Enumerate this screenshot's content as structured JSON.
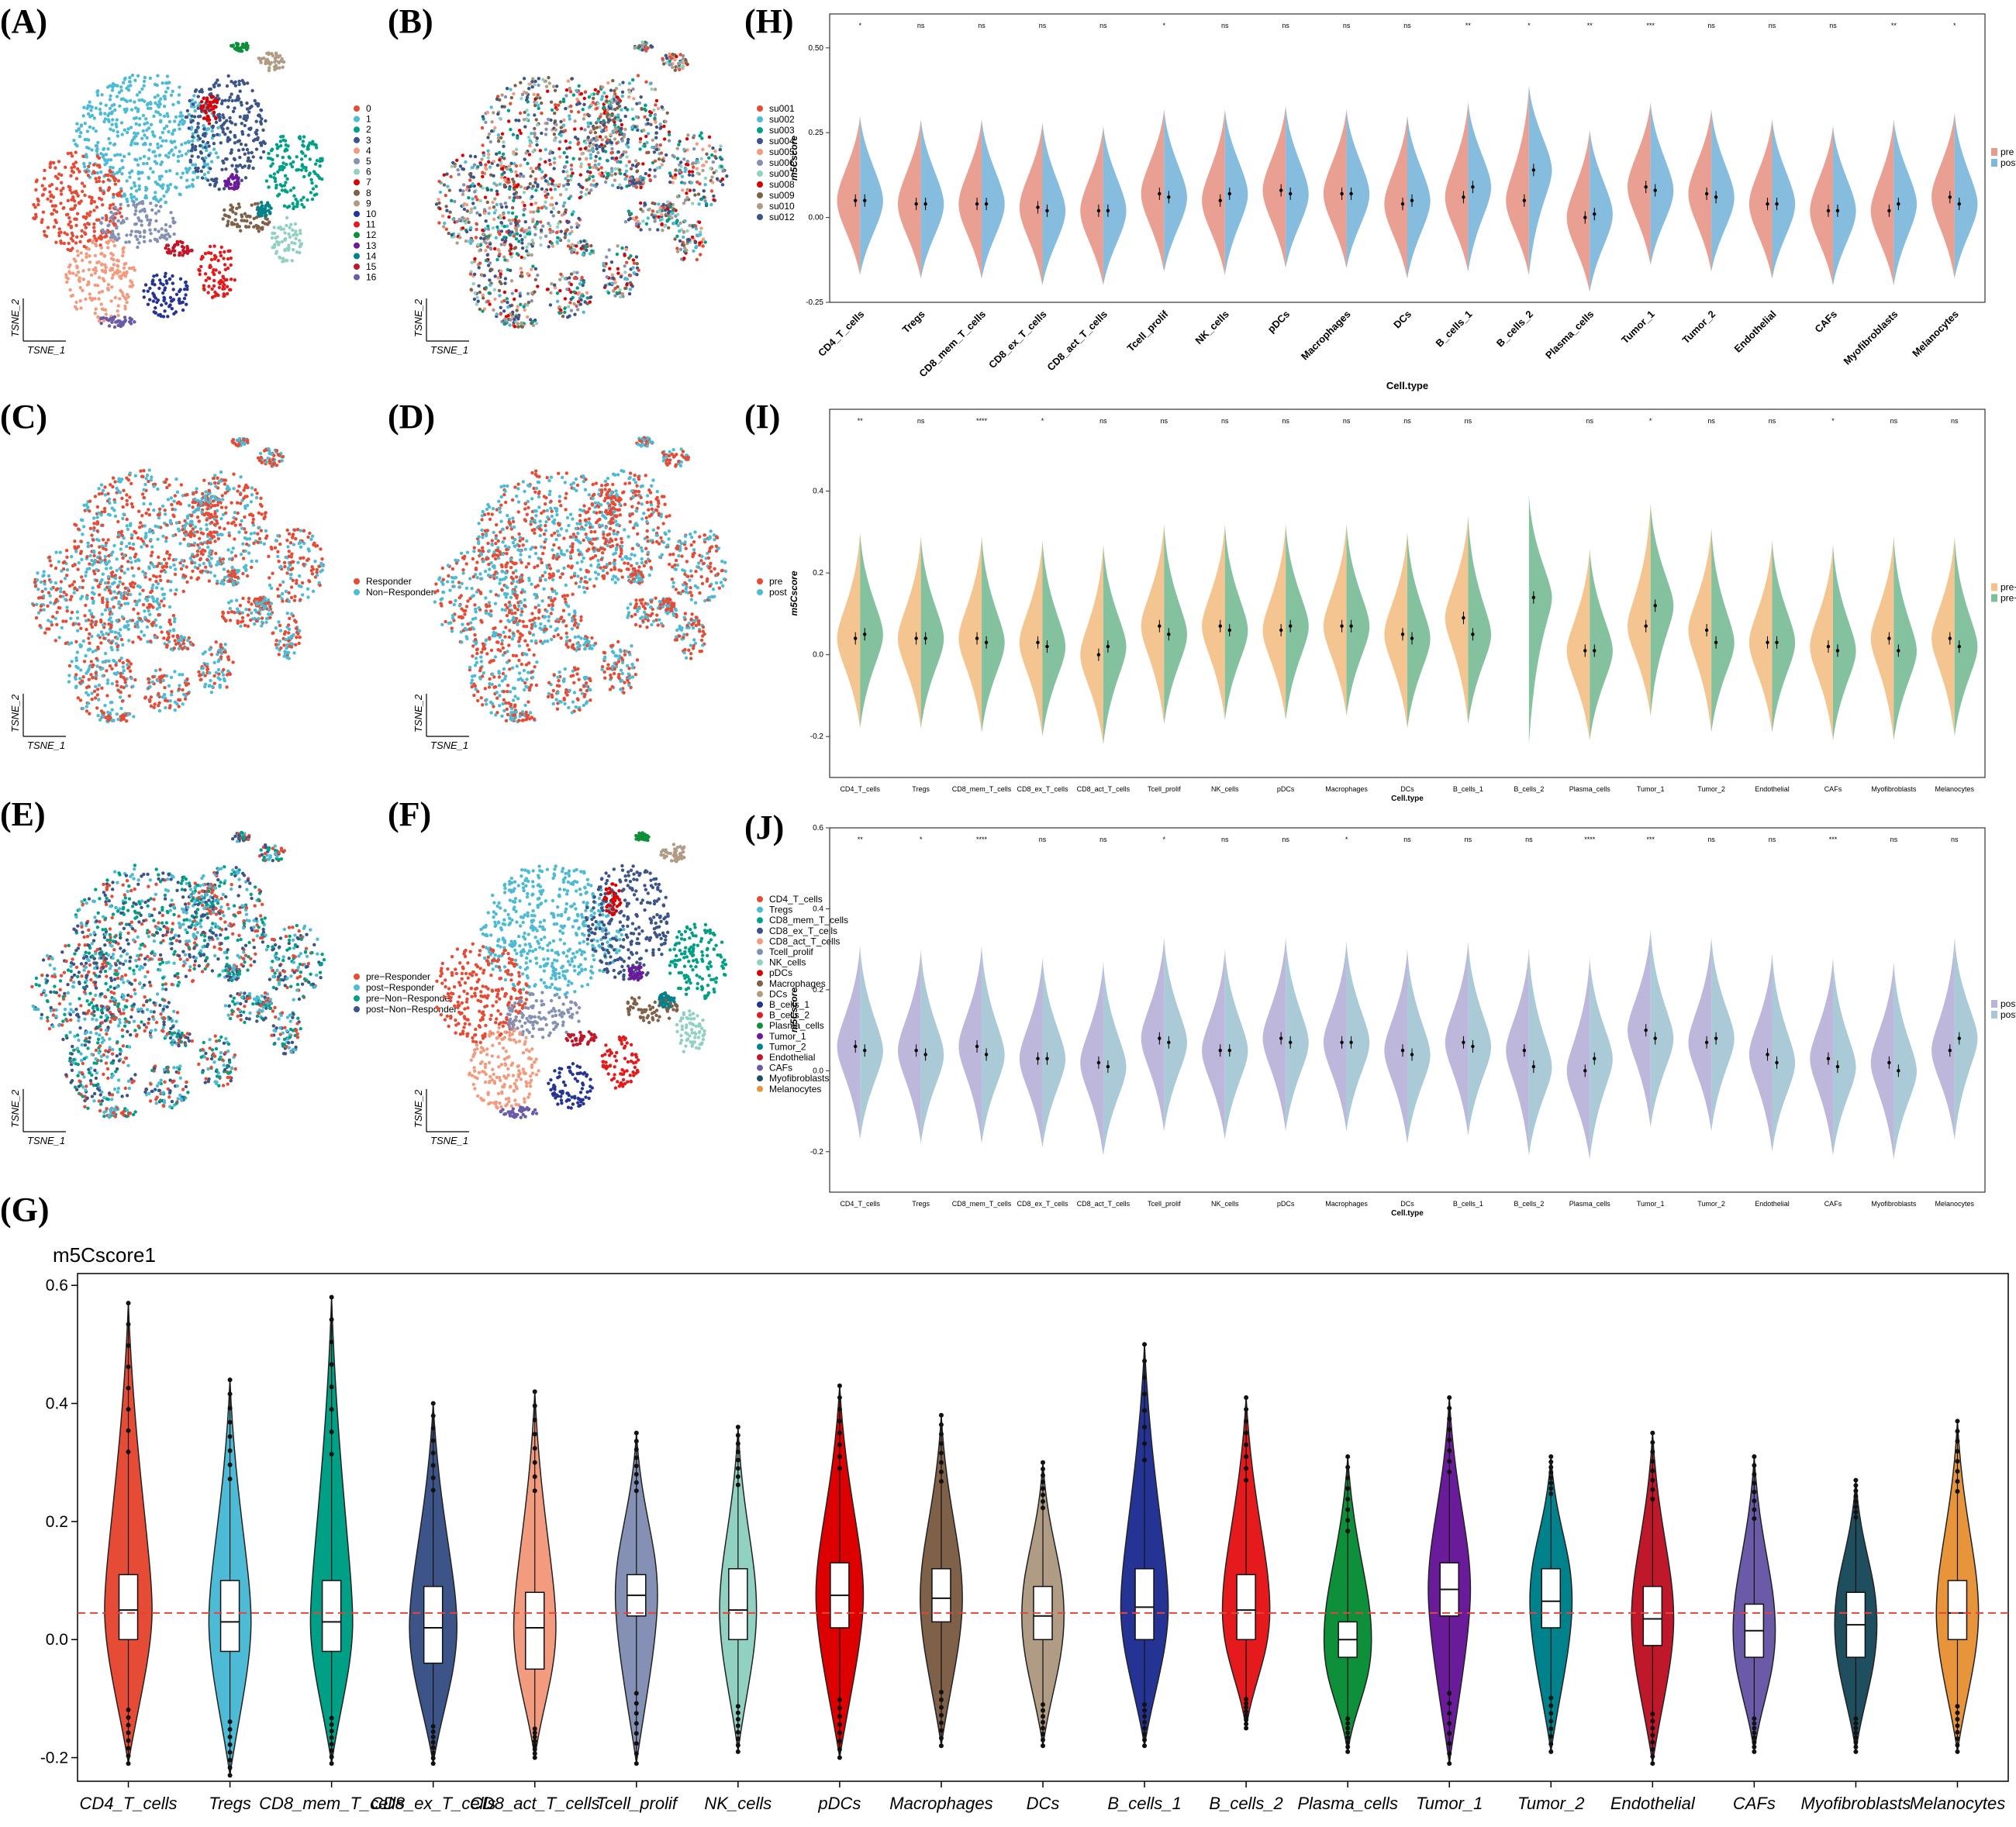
{
  "panel_labels": {
    "A": "(A)",
    "B": "(B)",
    "C": "(C)",
    "D": "(D)",
    "E": "(E)",
    "F": "(F)",
    "G": "(G)",
    "H": "(H)",
    "I": "(I)",
    "J": "(J)"
  },
  "tsne_axes": {
    "x": "TSNE_1",
    "y": "TSNE_2"
  },
  "cell_types": [
    "CD4_T_cells",
    "Tregs",
    "CD8_mem_T_cells",
    "CD8_ex_T_cells",
    "CD8_act_T_cells",
    "Tcell_prolif",
    "NK_cells",
    "pDCs",
    "Macrophages",
    "DCs",
    "B_cells_1",
    "B_cells_2",
    "Plasma_cells",
    "Tumor_1",
    "Tumor_2",
    "Endothelial",
    "CAFs",
    "Myofibroblasts",
    "Melanocytes"
  ],
  "cell_colors": [
    "#e64b35",
    "#4dbbd5",
    "#00a087",
    "#3c5488",
    "#f39b7f",
    "#8491b4",
    "#91d1c2",
    "#dc0000",
    "#7e6148",
    "#b09c85",
    "#253494",
    "#e41a1c",
    "#0e8f3a",
    "#6a1b9a",
    "#00828c",
    "#c0182b",
    "#6a5aa8",
    "#1f4e5f",
    "#e8943a"
  ],
  "tsne_panels": [
    {
      "id": "A",
      "legend": [
        "0",
        "1",
        "2",
        "3",
        "4",
        "5",
        "6",
        "7",
        "8",
        "9",
        "10",
        "11",
        "12",
        "13",
        "14",
        "15",
        "16"
      ],
      "colors": [
        "#e64b35",
        "#4dbbd5",
        "#00a087",
        "#3c5488",
        "#f39b7f",
        "#8491b4",
        "#91d1c2",
        "#dc0000",
        "#7e6148",
        "#b09c85",
        "#253494",
        "#e41a1c",
        "#0e8f3a",
        "#6a1b9a",
        "#00828c",
        "#c0182b",
        "#6a5aa8"
      ]
    },
    {
      "id": "B",
      "legend": [
        "su001",
        "su002",
        "su003",
        "su004",
        "su005",
        "su006",
        "su007",
        "su008",
        "su009",
        "su010",
        "su012"
      ],
      "colors": [
        "#e64b35",
        "#4dbbd5",
        "#00a087",
        "#3c5488",
        "#f39b7f",
        "#8491b4",
        "#91d1c2",
        "#dc0000",
        "#7e6148",
        "#b09c85",
        "#3c5488"
      ]
    },
    {
      "id": "C",
      "legend": [
        "Responder",
        "Non−Responder"
      ],
      "colors": [
        "#e64b35",
        "#4dbbd5"
      ]
    },
    {
      "id": "D",
      "legend": [
        "pre",
        "post"
      ],
      "colors": [
        "#e64b35",
        "#4dbbd5"
      ]
    },
    {
      "id": "E",
      "legend": [
        "pre−Responder",
        "post−Responder",
        "pre−Non−Responder",
        "post−Non−Responder"
      ],
      "colors": [
        "#e64b35",
        "#4dbbd5",
        "#00a087",
        "#3c5488"
      ]
    },
    {
      "id": "F",
      "legend": [
        "CD4_T_cells",
        "Tregs",
        "CD8_mem_T_cells",
        "CD8_ex_T_cells",
        "CD8_act_T_cells",
        "Tcell_prolif",
        "NK_cells",
        "pDCs",
        "Macrophages",
        "DCs",
        "B_cells_1",
        "B_cells_2",
        "Plasma_cells",
        "Tumor_1",
        "Tumor_2",
        "Endothelial",
        "CAFs",
        "Myofibroblasts",
        "Melanocytes"
      ],
      "colors": [
        "#e64b35",
        "#4dbbd5",
        "#00a087",
        "#3c5488",
        "#f39b7f",
        "#8491b4",
        "#91d1c2",
        "#dc0000",
        "#7e6148",
        "#b09c85",
        "#253494",
        "#e41a1c",
        "#0e8f3a",
        "#6a1b9a",
        "#00828c",
        "#c0182b",
        "#6a5aa8",
        "#1f4e5f",
        "#e8943a"
      ]
    }
  ],
  "chart_data": [
    {
      "id": "H",
      "type": "violin",
      "ylabel": "m5Cscore",
      "xlabel": "Cell.type",
      "ylim": [
        -0.25,
        0.6
      ],
      "yticks": [
        -0.25,
        0.0,
        0.25,
        0.5
      ],
      "ytick_labels": [
        "-0.25",
        "0.00",
        "0.25",
        "0.50"
      ],
      "series": [
        {
          "name": "pre",
          "color": "#e89a8c"
        },
        {
          "name": "post",
          "color": "#7fb8dc"
        }
      ],
      "significance": [
        "*",
        "ns",
        "ns",
        "ns",
        "ns",
        "*",
        "ns",
        "ns",
        "ns",
        "ns",
        "**",
        "*",
        "**",
        "***",
        "ns",
        "ns",
        "ns",
        "**",
        "*"
      ],
      "medians_a": [
        0.05,
        0.04,
        0.04,
        0.03,
        0.02,
        0.07,
        0.05,
        0.08,
        0.07,
        0.04,
        0.06,
        0.05,
        0.0,
        0.09,
        0.07,
        0.04,
        0.02,
        0.02,
        0.06
      ],
      "medians_b": [
        0.05,
        0.04,
        0.04,
        0.02,
        0.02,
        0.06,
        0.07,
        0.07,
        0.07,
        0.05,
        0.09,
        0.14,
        0.01,
        0.08,
        0.06,
        0.04,
        0.02,
        0.04,
        0.04
      ]
    },
    {
      "id": "I",
      "type": "violin",
      "ylabel": "m5Cscore",
      "xlabel": "Cell.type",
      "ylim": [
        -0.3,
        0.6
      ],
      "yticks": [
        -0.2,
        0.0,
        0.2,
        0.4
      ],
      "ytick_labels": [
        "-0.2",
        "0.0",
        "0.2",
        "0.4"
      ],
      "series": [
        {
          "name": "pre−Non−Responder",
          "color": "#f3c28a"
        },
        {
          "name": "pre−Responder",
          "color": "#7dbf9a"
        }
      ],
      "significance": [
        "**",
        "ns",
        "****",
        "*",
        "ns",
        "ns",
        "ns",
        "ns",
        "ns",
        "ns",
        "ns",
        "",
        "ns",
        "*",
        "ns",
        "ns",
        "*",
        "ns",
        "ns"
      ],
      "medians_a": [
        0.04,
        0.04,
        0.04,
        0.03,
        0.0,
        0.07,
        0.07,
        0.06,
        0.07,
        0.05,
        0.09,
        null,
        0.01,
        0.07,
        0.06,
        0.03,
        0.02,
        0.04,
        0.04
      ],
      "medians_b": [
        0.05,
        0.04,
        0.03,
        0.02,
        0.02,
        0.05,
        0.06,
        0.07,
        0.07,
        0.04,
        0.05,
        0.14,
        0.01,
        0.12,
        0.03,
        0.03,
        0.01,
        0.01,
        0.02
      ]
    },
    {
      "id": "J",
      "type": "violin",
      "ylabel": "m5Cscore",
      "xlabel": "Cell.type",
      "ylim": [
        -0.3,
        0.6
      ],
      "yticks": [
        -0.2,
        0.0,
        0.2,
        0.4,
        0.6
      ],
      "ytick_labels": [
        "-0.2",
        "0.0",
        "0.2",
        "0.4",
        "0.6"
      ],
      "series": [
        {
          "name": "post−Non−Responder",
          "color": "#b9b3d9"
        },
        {
          "name": "post−Responder",
          "color": "#a7c7d6"
        }
      ],
      "significance": [
        "**",
        "*",
        "****",
        "ns",
        "ns",
        "*",
        "ns",
        "ns",
        "*",
        "ns",
        "ns",
        "ns",
        "****",
        "***",
        "ns",
        "ns",
        "***",
        "ns",
        "ns"
      ],
      "medians_a": [
        0.06,
        0.05,
        0.06,
        0.03,
        0.02,
        0.08,
        0.05,
        0.08,
        0.07,
        0.05,
        0.07,
        0.05,
        0.0,
        0.1,
        0.07,
        0.04,
        0.03,
        0.02,
        0.05
      ],
      "medians_b": [
        0.05,
        0.04,
        0.04,
        0.03,
        0.01,
        0.07,
        0.05,
        0.07,
        0.07,
        0.04,
        0.06,
        0.01,
        0.03,
        0.08,
        0.08,
        0.02,
        0.01,
        0.0,
        0.08
      ]
    },
    {
      "id": "G",
      "type": "violin",
      "title": "m5Cscore1",
      "ylim": [
        -0.24,
        0.62
      ],
      "yticks": [
        -0.2,
        0.0,
        0.2,
        0.4,
        0.6
      ],
      "ytick_labels": [
        "-0.2",
        "0.0",
        "0.2",
        "0.4",
        "0.6"
      ],
      "reference_line": 0.045,
      "categories": [
        "CD4_T_cells",
        "Tregs",
        "CD8_mem_T_cells",
        "CD8_ex_T_cells",
        "CD8_act_T_cells",
        "Tcell_prolif",
        "NK_cells",
        "pDCs",
        "Macrophages",
        "DCs",
        "B_cells_1",
        "B_cells_2",
        "Plasma_cells",
        "Tumor_1",
        "Tumor_2",
        "Endothelial",
        "CAFs",
        "Myofibroblasts",
        "Melanocytes"
      ],
      "q1": [
        0.0,
        -0.02,
        -0.02,
        -0.04,
        -0.05,
        0.04,
        0.0,
        0.02,
        0.03,
        0.0,
        0.0,
        0.0,
        -0.03,
        0.04,
        0.02,
        -0.01,
        -0.03,
        -0.03,
        0.0
      ],
      "median": [
        0.05,
        0.03,
        0.03,
        0.02,
        0.02,
        0.075,
        0.05,
        0.075,
        0.07,
        0.04,
        0.055,
        0.05,
        0.0,
        0.085,
        0.065,
        0.035,
        0.015,
        0.025,
        0.045
      ],
      "q3": [
        0.11,
        0.1,
        0.1,
        0.09,
        0.08,
        0.11,
        0.12,
        0.13,
        0.12,
        0.09,
        0.12,
        0.11,
        0.03,
        0.13,
        0.12,
        0.09,
        0.06,
        0.08,
        0.1
      ],
      "min": [
        -0.21,
        -0.23,
        -0.21,
        -0.21,
        -0.2,
        -0.21,
        -0.19,
        -0.2,
        -0.18,
        -0.18,
        -0.18,
        -0.15,
        -0.19,
        -0.21,
        -0.19,
        -0.21,
        -0.19,
        -0.19,
        -0.19
      ],
      "max": [
        0.57,
        0.44,
        0.58,
        0.4,
        0.42,
        0.35,
        0.36,
        0.43,
        0.38,
        0.3,
        0.5,
        0.41,
        0.31,
        0.41,
        0.31,
        0.35,
        0.31,
        0.27,
        0.37
      ],
      "width": [
        0.9,
        0.8,
        0.8,
        0.9,
        0.8,
        0.8,
        0.7,
        0.9,
        0.8,
        0.8,
        0.9,
        0.9,
        0.9,
        0.8,
        0.8,
        0.8,
        0.8,
        0.8,
        0.8
      ]
    }
  ]
}
